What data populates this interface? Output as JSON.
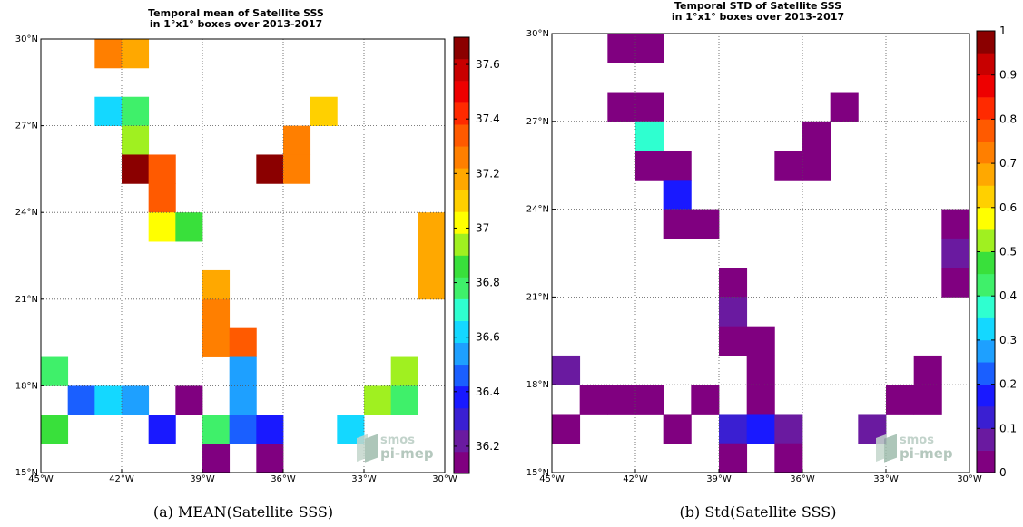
{
  "chart_data": [
    {
      "type": "heatmap",
      "title_lines": [
        "Temporal mean of Satellite SSS",
        "in 1°x1° boxes over 2013-2017"
      ],
      "caption": "(a) MEAN(Satellite SSS)",
      "xlim": [
        -45,
        -30
      ],
      "ylim": [
        15,
        30
      ],
      "x_ticks": [
        "45°W",
        "42°W",
        "39°W",
        "36°W",
        "33°W",
        "30°W"
      ],
      "y_ticks": [
        "15°N",
        "18°N",
        "21°N",
        "24°N",
        "27°N",
        "30°N"
      ],
      "grid": true,
      "colorbar_range": [
        36.1,
        37.7
      ],
      "colorbar_ticks": [
        "36.2",
        "36.4",
        "36.6",
        "36.8",
        "37",
        "37.2",
        "37.4",
        "37.6"
      ],
      "cells": [
        [
          -43,
          29,
          37.25
        ],
        [
          -42,
          29,
          37.15
        ],
        [
          -43,
          27,
          36.6
        ],
        [
          -42,
          27,
          36.75
        ],
        [
          -35,
          27,
          37.1
        ],
        [
          -42,
          26,
          36.95
        ],
        [
          -36,
          26,
          37.25
        ],
        [
          -42,
          25,
          37.65
        ],
        [
          -41,
          25,
          37.35
        ],
        [
          -37,
          25,
          37.65
        ],
        [
          -36,
          25,
          37.25
        ],
        [
          -41,
          24,
          37.35
        ],
        [
          -41,
          23,
          37.05
        ],
        [
          -40,
          23,
          36.9
        ],
        [
          -31,
          23,
          37.15
        ],
        [
          -31,
          22,
          37.15
        ],
        [
          -31,
          21,
          37.15
        ],
        [
          -39,
          21,
          37.15
        ],
        [
          -39,
          20,
          37.25
        ],
        [
          -39,
          19,
          37.25
        ],
        [
          -38,
          19,
          37.35
        ],
        [
          -45,
          18,
          36.75
        ],
        [
          -38,
          18,
          36.55
        ],
        [
          -32,
          18,
          36.95
        ],
        [
          -44,
          17,
          36.45
        ],
        [
          -43,
          17,
          36.65
        ],
        [
          -42,
          17,
          36.55
        ],
        [
          -40,
          17,
          36.15
        ],
        [
          -38,
          17,
          36.55
        ],
        [
          -33,
          17,
          36.95
        ],
        [
          -32,
          17,
          36.75
        ],
        [
          -45,
          16,
          36.85
        ],
        [
          -41,
          16,
          36.35
        ],
        [
          -39,
          16,
          36.75
        ],
        [
          -38,
          16,
          36.45
        ],
        [
          -37,
          16,
          36.35
        ],
        [
          -34,
          16,
          36.6
        ],
        [
          -39,
          15,
          36.15
        ],
        [
          -37,
          15,
          36.15
        ]
      ]
    },
    {
      "type": "heatmap",
      "title_lines": [
        "Temporal STD of Satellite SSS",
        "in 1°x1° boxes over 2013-2017"
      ],
      "caption": "(b) Std(Satellite SSS)",
      "xlim": [
        -45,
        -30
      ],
      "ylim": [
        15,
        30
      ],
      "x_ticks": [
        "45°W",
        "42°W",
        "39°W",
        "36°W",
        "33°W",
        "30°W"
      ],
      "y_ticks": [
        "15°N",
        "18°N",
        "21°N",
        "24°N",
        "27°N",
        "30°N"
      ],
      "grid": true,
      "colorbar_range": [
        0,
        1
      ],
      "colorbar_ticks": [
        "0",
        "0.1",
        "0.2",
        "0.3",
        "0.4",
        "0.5",
        "0.6",
        "0.7",
        "0.8",
        "0.9",
        "1"
      ],
      "cells": [
        [
          -43,
          29,
          0.03
        ],
        [
          -42,
          29,
          0.03
        ],
        [
          -43,
          27,
          0.03
        ],
        [
          -42,
          27,
          0.03
        ],
        [
          -35,
          27,
          0.03
        ],
        [
          -42,
          26,
          0.38
        ],
        [
          -36,
          26,
          0.03
        ],
        [
          -42,
          25,
          0.03
        ],
        [
          -41,
          25,
          0.03
        ],
        [
          -37,
          25,
          0.03
        ],
        [
          -36,
          25,
          0.03
        ],
        [
          -41,
          24,
          0.16
        ],
        [
          -41,
          23,
          0.03
        ],
        [
          -40,
          23,
          0.03
        ],
        [
          -31,
          23,
          0.03
        ],
        [
          -31,
          22,
          0.08
        ],
        [
          -31,
          21,
          0.03
        ],
        [
          -39,
          21,
          0.03
        ],
        [
          -39,
          20,
          0.08
        ],
        [
          -39,
          19,
          0.03
        ],
        [
          -38,
          19,
          0.03
        ],
        [
          -45,
          18,
          0.08
        ],
        [
          -38,
          18,
          0.03
        ],
        [
          -32,
          18,
          0.03
        ],
        [
          -44,
          17,
          0.03
        ],
        [
          -43,
          17,
          0.03
        ],
        [
          -42,
          17,
          0.03
        ],
        [
          -40,
          17,
          0.03
        ],
        [
          -38,
          17,
          0.03
        ],
        [
          -33,
          17,
          0.03
        ],
        [
          -32,
          17,
          0.03
        ],
        [
          -45,
          16,
          0.03
        ],
        [
          -41,
          16,
          0.03
        ],
        [
          -39,
          16,
          0.13
        ],
        [
          -38,
          16,
          0.18
        ],
        [
          -37,
          16,
          0.08
        ],
        [
          -34,
          16,
          0.08
        ],
        [
          -39,
          15,
          0.03
        ],
        [
          -37,
          15,
          0.03
        ]
      ]
    }
  ],
  "colormap": [
    "#800080",
    "#6a1aa0",
    "#3a1fd2",
    "#1919ff",
    "#1a5fff",
    "#1ea0ff",
    "#14d8ff",
    "#2fffd0",
    "#3ff06a",
    "#39e03b",
    "#a0f020",
    "#ffff00",
    "#ffd000",
    "#ffa800",
    "#ff7f00",
    "#ff5a00",
    "#ff2a00",
    "#ee0000",
    "#c80000",
    "#8b0000"
  ],
  "logo": {
    "line1": "smos",
    "line2": "pi-mep"
  }
}
